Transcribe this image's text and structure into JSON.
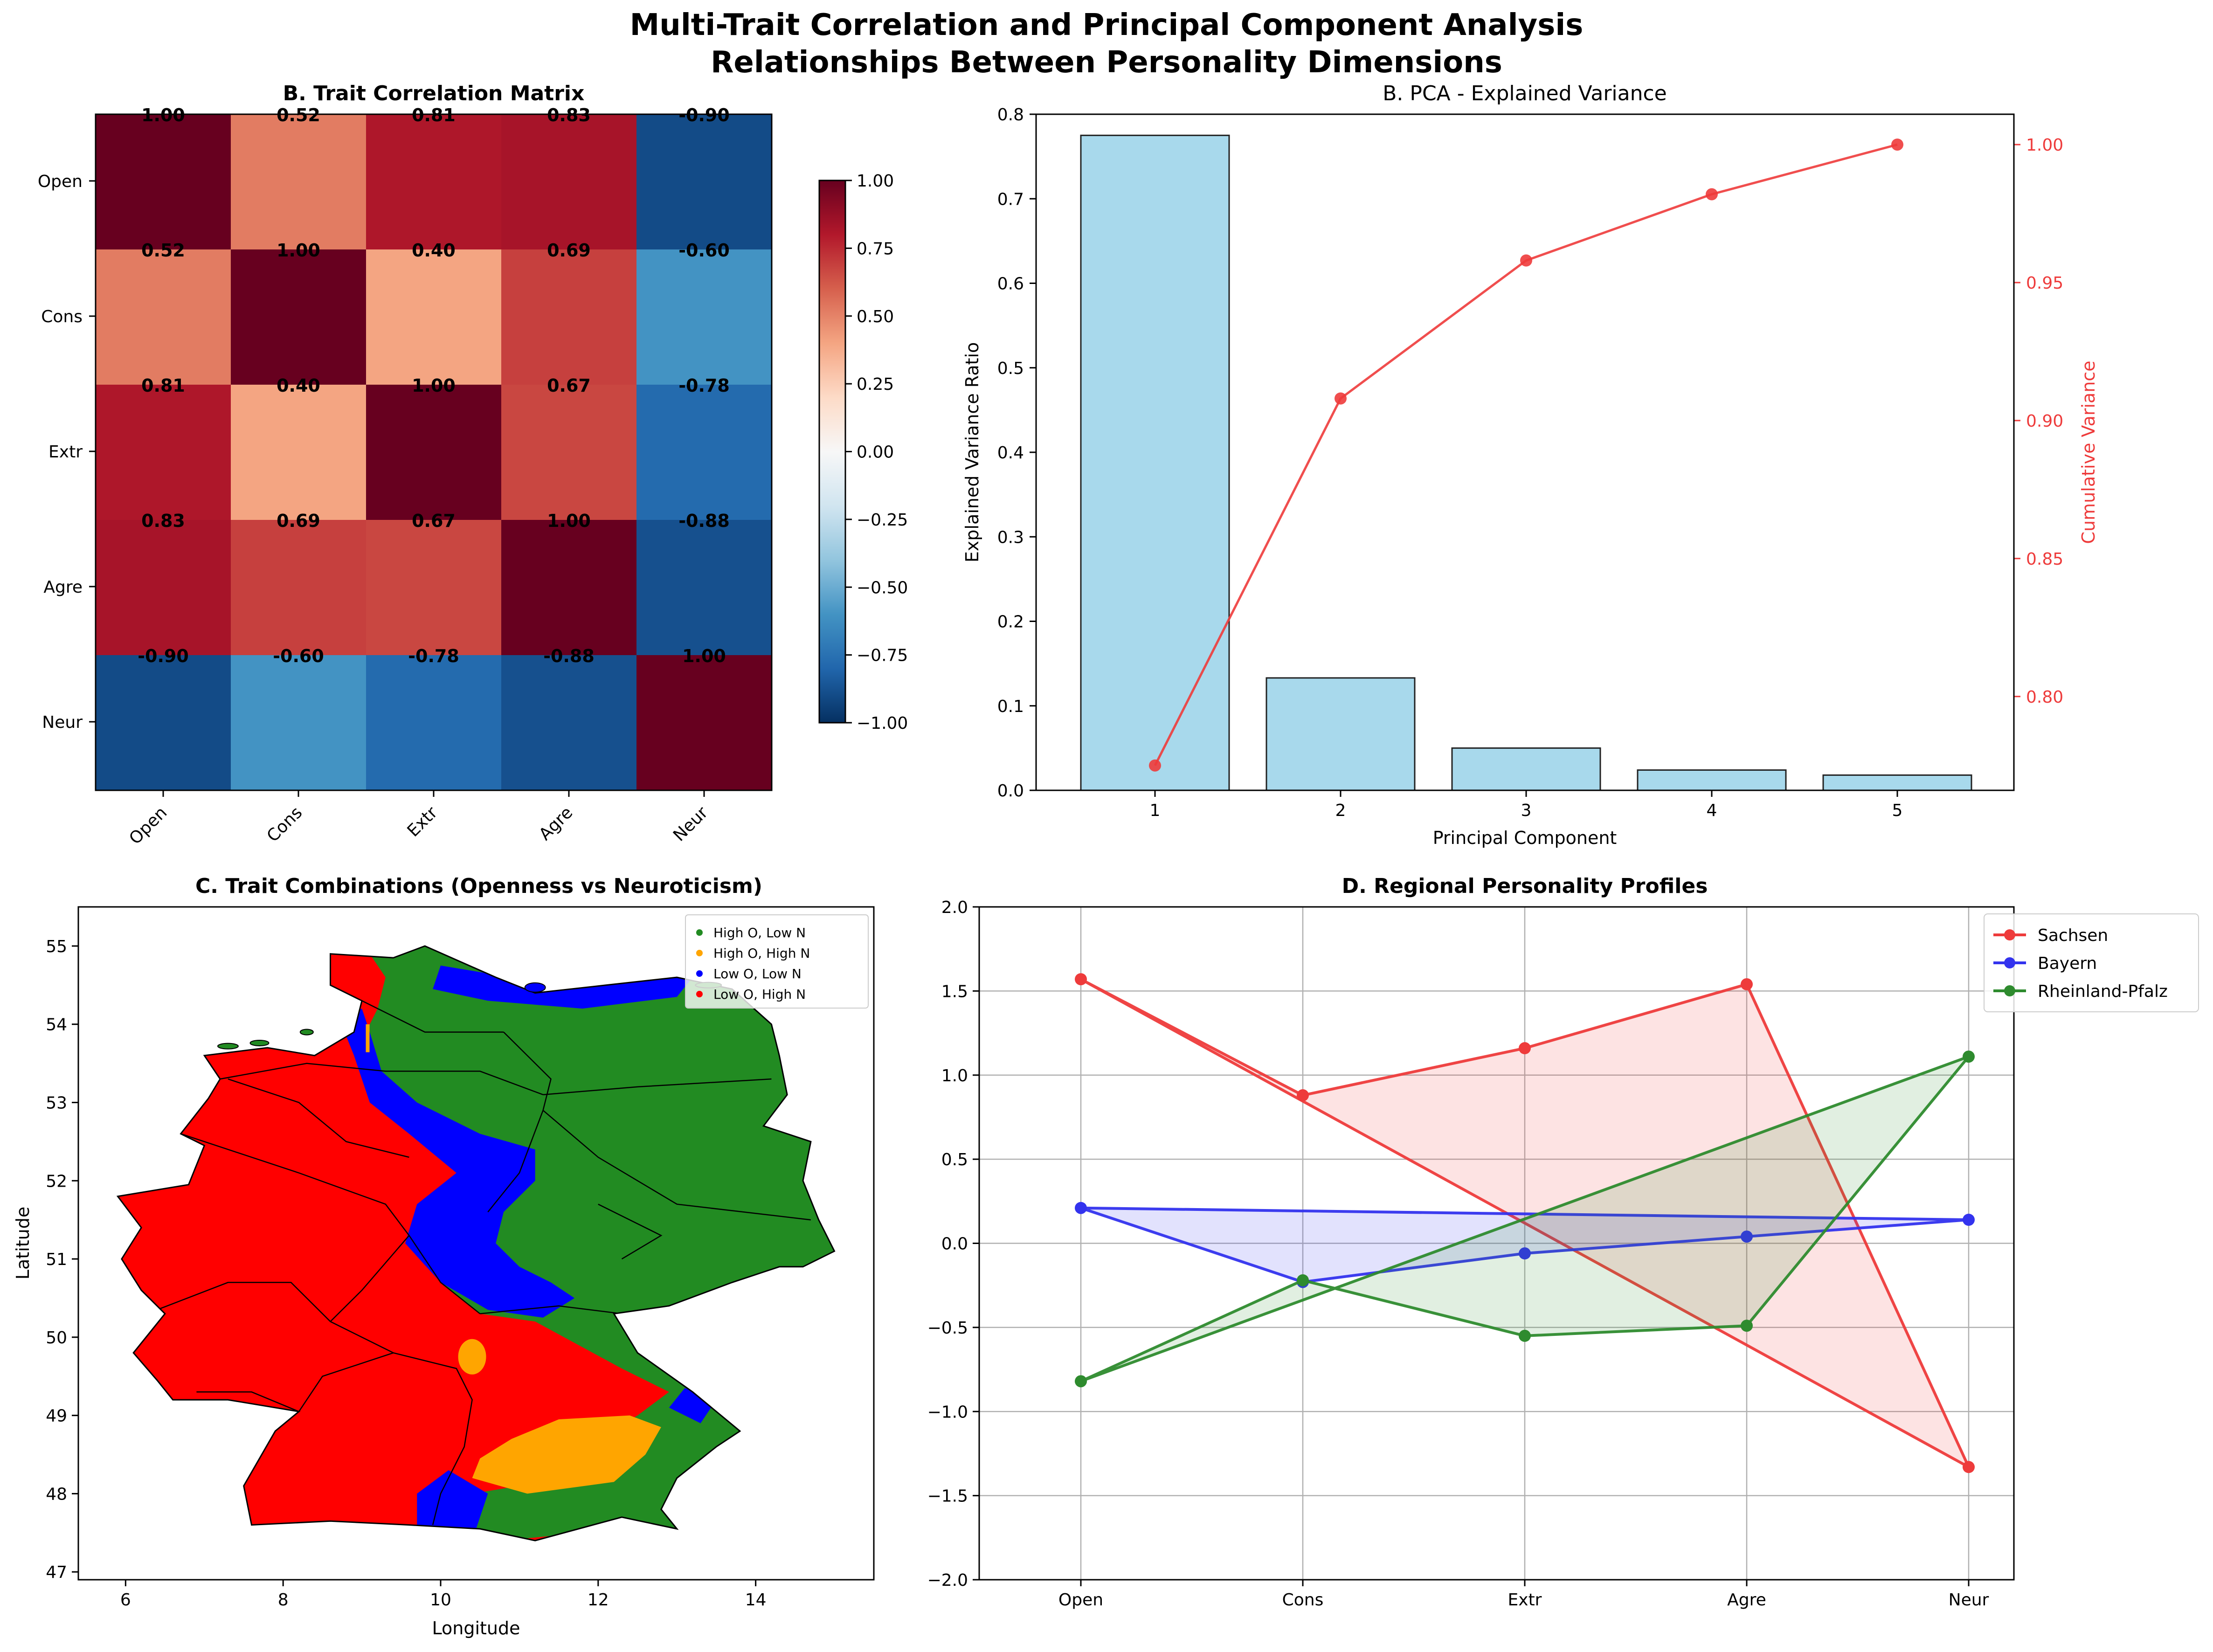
{
  "figure": {
    "title_line1": "Multi-Trait Correlation and Principal Component Analysis",
    "title_line2": "Relationships Between Personality Dimensions"
  },
  "colors": {
    "pca_bar": "#a8d9ec",
    "pca_line": "#ee3b3b",
    "map_high_o_low_n": "#228b22",
    "map_high_o_high_n": "#ffa500",
    "map_low_o_low_n": "#0000ff",
    "map_low_o_high_n": "#ff0000",
    "sachsen": "#ee3b3b",
    "bayern": "#3333ee",
    "rheinland_pfalz": "#2e8b2e"
  },
  "chart_data": [
    {
      "type": "heatmap",
      "title": "B. Trait Correlation Matrix",
      "rows": [
        "Open",
        "Cons",
        "Extr",
        "Agre",
        "Neur"
      ],
      "columns": [
        "Open",
        "Cons",
        "Extr",
        "Agre",
        "Neur"
      ],
      "values": [
        [
          1.0,
          0.52,
          0.81,
          0.83,
          -0.9
        ],
        [
          0.52,
          1.0,
          0.4,
          0.69,
          -0.6
        ],
        [
          0.81,
          0.4,
          1.0,
          0.67,
          -0.78
        ],
        [
          0.83,
          0.69,
          0.67,
          1.0,
          -0.88
        ],
        [
          -0.9,
          -0.6,
          -0.78,
          -0.88,
          1.0
        ]
      ],
      "colorbar": {
        "range": [
          -1.0,
          1.0
        ],
        "ticks": [
          "1.00",
          "0.75",
          "0.50",
          "0.25",
          "0.00",
          "−0.25",
          "−0.50",
          "−0.75",
          "−1.00"
        ],
        "colormap": "RdBu_r"
      }
    },
    {
      "type": "bar",
      "title": "B. PCA - Explained Variance",
      "xlabel": "Principal Component",
      "ylabel": "Explained Variance Ratio",
      "y2label": "Cumulative Variance",
      "categories": [
        "1",
        "2",
        "3",
        "4",
        "5"
      ],
      "series": [
        {
          "values": [
            0.775,
            0.133,
            0.05,
            0.024,
            0.018
          ]
        },
        {
          "values": [
            0.775,
            0.908,
            0.958,
            0.982,
            1.0
          ]
        }
      ],
      "ylim": [
        0,
        0.8
      ],
      "yticks": [
        "0.0",
        "0.1",
        "0.2",
        "0.3",
        "0.4",
        "0.5",
        "0.6",
        "0.7",
        "0.8"
      ],
      "y2lim": [
        0.766,
        1.011
      ],
      "y2ticks": [
        "0.80",
        "0.85",
        "0.90",
        "0.95",
        "1.00"
      ]
    },
    {
      "type": "scatter",
      "title": "C. Trait Combinations (Openness vs Neuroticism)",
      "xlabel": "Longitude",
      "ylabel": "Latitude",
      "xlim": [
        5.4,
        15.5
      ],
      "ylim": [
        46.9,
        55.5
      ],
      "xticks": [
        "6",
        "8",
        "10",
        "12",
        "14"
      ],
      "yticks": [
        "47",
        "48",
        "49",
        "50",
        "51",
        "52",
        "53",
        "54",
        "55"
      ],
      "legend": [
        "High O, Low N",
        "High O, High N",
        "Low O, Low N",
        "Low O, High N"
      ],
      "legend_position": "top-right"
    },
    {
      "type": "line",
      "title": "D. Regional Personality Profiles",
      "categories": [
        "Open",
        "Cons",
        "Extr",
        "Agre",
        "Neur"
      ],
      "ylim": [
        -2.0,
        2.0
      ],
      "yticks": [
        "2.0",
        "1.5",
        "1.0",
        "0.5",
        "0.0",
        "−0.5",
        "−1.0",
        "−1.5",
        "−2.0"
      ],
      "legend_position": "top-right",
      "series": [
        {
          "name": "Sachsen",
          "values": [
            1.57,
            0.88,
            1.16,
            1.54,
            -1.33
          ]
        },
        {
          "name": "Bayern",
          "values": [
            0.21,
            -0.23,
            -0.06,
            0.04,
            0.14
          ]
        },
        {
          "name": "Rheinland-Pfalz",
          "values": [
            -0.82,
            -0.22,
            -0.55,
            -0.49,
            1.11
          ]
        }
      ]
    }
  ]
}
